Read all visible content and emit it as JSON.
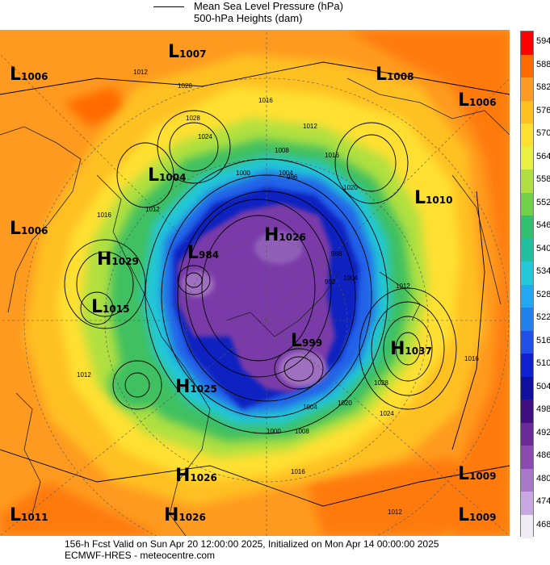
{
  "legend": {
    "mslp_label": "Mean Sea Level Pressure (hPa)",
    "heights_label": "500-hPa Heights (dam)"
  },
  "colorbar": {
    "levels": [
      "594",
      "588",
      "582",
      "576",
      "570",
      "564",
      "558",
      "552",
      "546",
      "540",
      "534",
      "528",
      "522",
      "516",
      "510",
      "504",
      "498",
      "492",
      "486",
      "480",
      "474",
      "468"
    ],
    "colors": [
      "#ff0000",
      "#ff6a00",
      "#ff9a20",
      "#ffc020",
      "#ffe030",
      "#e8f040",
      "#b0e040",
      "#70d048",
      "#30c070",
      "#20c0a0",
      "#20c8d8",
      "#20a8f0",
      "#2080f0",
      "#2050e8",
      "#1020d0",
      "#1010a0",
      "#401080",
      "#6a2a98",
      "#8a4ab0",
      "#a878c8",
      "#c8a8e0",
      "#f0ecf6"
    ]
  },
  "pressure_centers": [
    {
      "type": "L",
      "value": "1006"
    },
    {
      "type": "L",
      "value": "1007"
    },
    {
      "type": "L",
      "value": "1008"
    },
    {
      "type": "L",
      "value": "1006"
    },
    {
      "type": "L",
      "value": "1004"
    },
    {
      "type": "L",
      "value": "1010"
    },
    {
      "type": "L",
      "value": "1006"
    },
    {
      "type": "H",
      "value": "1029"
    },
    {
      "type": "L",
      "value": "984"
    },
    {
      "type": "H",
      "value": "1026"
    },
    {
      "type": "L",
      "value": "1015"
    },
    {
      "type": "L",
      "value": "999"
    },
    {
      "type": "H",
      "value": "1037"
    },
    {
      "type": "H",
      "value": "1025"
    },
    {
      "type": "H",
      "value": "1026"
    },
    {
      "type": "L",
      "value": "1009"
    },
    {
      "type": "L",
      "value": "1011"
    },
    {
      "type": "H",
      "value": "1026"
    },
    {
      "type": "L",
      "value": "1009"
    }
  ],
  "isobar_labels": [
    "1012",
    "1020",
    "1016",
    "1024",
    "1028",
    "1012",
    "1016",
    "1008",
    "1004",
    "1000",
    "996",
    "992",
    "988",
    "1016",
    "1020",
    "1012",
    "1004",
    "1028",
    "1024",
    "1020",
    "1016",
    "1012",
    "1008",
    "1004",
    "1000",
    "1012",
    "1016",
    "1012"
  ],
  "footer": {
    "line1": "156-h Fcst Valid on Sun Apr 20 12:00:00 2025, Initialized on Mon Apr 14 00:00:00 2025",
    "line2": "ECMWF-HRES   - meteocentre.com"
  }
}
